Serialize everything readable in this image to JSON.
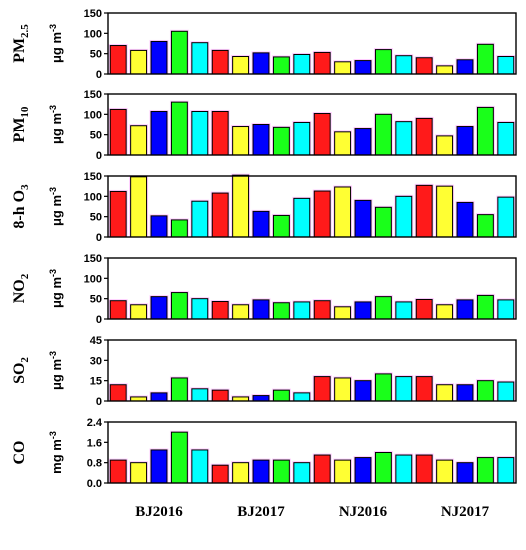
{
  "colors": {
    "bar_palette": [
      "#ff1a1a",
      "#ffff33",
      "#0000ff",
      "#1aff1a",
      "#00ffff"
    ],
    "glow": "#ff66ff",
    "axis": "#000000"
  },
  "chart_data": {
    "type": "bar",
    "categories": [
      "BJ2016",
      "BJ2017",
      "NJ2016",
      "NJ2017"
    ],
    "bars_per_category": 5,
    "panels": [
      {
        "label_main": "PM",
        "label_sub": "2.5",
        "unit": "μg m",
        "unit_sup": "-3",
        "ylim": [
          0,
          150
        ],
        "yticks": [
          0,
          50,
          100,
          150
        ],
        "tick_labels": [
          "0",
          "50",
          "100",
          "150"
        ],
        "values": [
          70,
          58,
          80,
          105,
          77,
          58,
          43,
          52,
          42,
          48,
          53,
          30,
          33,
          60,
          45,
          40,
          20,
          35,
          73,
          43
        ]
      },
      {
        "label_main": "PM",
        "label_sub": "10",
        "unit": "μg m",
        "unit_sup": "-3",
        "ylim": [
          0,
          150
        ],
        "yticks": [
          0,
          50,
          100,
          150
        ],
        "tick_labels": [
          "0",
          "50",
          "100",
          "150"
        ],
        "values": [
          112,
          72,
          107,
          130,
          107,
          107,
          70,
          75,
          68,
          80,
          102,
          57,
          65,
          100,
          82,
          90,
          47,
          70,
          117,
          80
        ]
      },
      {
        "label_main": "8-h O",
        "label_sub": "3",
        "unit": "μg m",
        "unit_sup": "-3",
        "ylim": [
          0,
          150
        ],
        "yticks": [
          0,
          50,
          100,
          150
        ],
        "tick_labels": [
          "0",
          "50",
          "100",
          "150"
        ],
        "values": [
          112,
          148,
          52,
          42,
          88,
          108,
          152,
          63,
          53,
          95,
          113,
          123,
          90,
          73,
          100,
          127,
          125,
          85,
          55,
          98
        ]
      },
      {
        "label_main": "NO",
        "label_sub": "2",
        "unit": "μg m",
        "unit_sup": "-3",
        "ylim": [
          0,
          150
        ],
        "yticks": [
          0,
          50,
          100,
          150
        ],
        "tick_labels": [
          "0",
          "50",
          "100",
          "150"
        ],
        "values": [
          45,
          35,
          55,
          65,
          50,
          43,
          35,
          47,
          40,
          42,
          45,
          30,
          42,
          55,
          42,
          48,
          35,
          47,
          58,
          47
        ]
      },
      {
        "label_main": "SO",
        "label_sub": "2",
        "unit": "μg m",
        "unit_sup": "-3",
        "ylim": [
          0,
          45
        ],
        "yticks": [
          0,
          15,
          30,
          45
        ],
        "tick_labels": [
          "0",
          "15",
          "30",
          "45"
        ],
        "values": [
          12,
          3,
          6,
          17,
          9,
          8,
          3,
          4,
          8,
          6,
          18,
          17,
          15,
          20,
          18,
          18,
          12,
          12,
          15,
          14
        ]
      },
      {
        "label_main": "CO",
        "label_sub": "",
        "unit": "mg m",
        "unit_sup": "-3",
        "ylim": [
          0,
          2.4
        ],
        "yticks": [
          0,
          0.8,
          1.6,
          2.4
        ],
        "tick_labels": [
          "0.0",
          "0.8",
          "1.6",
          "2.4"
        ],
        "values": [
          0.9,
          0.8,
          1.3,
          2.0,
          1.3,
          0.7,
          0.8,
          0.9,
          0.9,
          0.8,
          1.1,
          0.9,
          1.0,
          1.2,
          1.1,
          1.1,
          0.9,
          0.8,
          1.0,
          1.0
        ]
      }
    ]
  }
}
